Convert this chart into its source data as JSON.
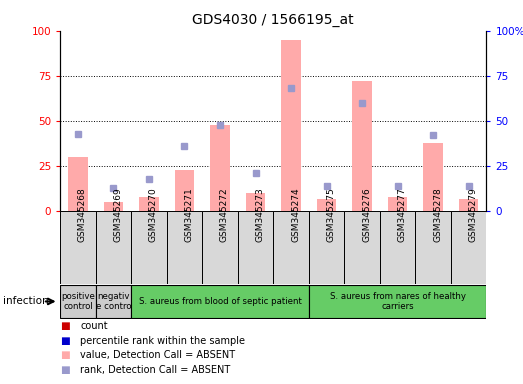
{
  "title": "GDS4030 / 1566195_at",
  "samples": [
    "GSM345268",
    "GSM345269",
    "GSM345270",
    "GSM345271",
    "GSM345272",
    "GSM345273",
    "GSM345274",
    "GSM345275",
    "GSM345276",
    "GSM345277",
    "GSM345278",
    "GSM345279"
  ],
  "absent_bar_values": [
    30,
    5,
    8,
    23,
    48,
    10,
    95,
    7,
    72,
    8,
    38,
    7
  ],
  "absent_rank_values": [
    43,
    13,
    18,
    36,
    48,
    21,
    68,
    14,
    60,
    14,
    42,
    14
  ],
  "groups": [
    {
      "label": "positive\ncontrol",
      "start": 0,
      "end": 1,
      "color": "#cccccc"
    },
    {
      "label": "negativ\ne contro",
      "start": 1,
      "end": 2,
      "color": "#cccccc"
    },
    {
      "label": "S. aureus from blood of septic patient",
      "start": 2,
      "end": 7,
      "color": "#66cc66"
    },
    {
      "label": "S. aureus from nares of healthy\ncarriers",
      "start": 7,
      "end": 12,
      "color": "#66cc66"
    }
  ],
  "ylim": [
    0,
    100
  ],
  "absent_bar_color": "#ffaaaa",
  "absent_rank_color": "#9999cc",
  "count_color": "#cc0000",
  "rank_color": "#0000cc",
  "sample_bg_color": "#d8d8d8",
  "legend_items": [
    {
      "color": "#cc0000",
      "label": "count"
    },
    {
      "color": "#0000cc",
      "label": "percentile rank within the sample"
    },
    {
      "color": "#ffaaaa",
      "label": "value, Detection Call = ABSENT"
    },
    {
      "color": "#9999cc",
      "label": "rank, Detection Call = ABSENT"
    }
  ]
}
